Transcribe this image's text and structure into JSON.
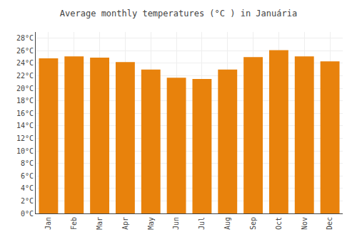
{
  "chart_data": {
    "type": "bar",
    "title": "Average monthly temperatures (°C ) in Januária",
    "categories": [
      "Jan",
      "Feb",
      "Mar",
      "Apr",
      "May",
      "Jun",
      "Jul",
      "Aug",
      "Sep",
      "Oct",
      "Nov",
      "Dec"
    ],
    "values": [
      24.8,
      25.1,
      24.9,
      24.2,
      23.0,
      21.7,
      21.5,
      23.0,
      25.0,
      26.1,
      25.1,
      24.3
    ],
    "color": "#E8820C",
    "ylim": [
      0,
      29
    ],
    "yticks": [
      {
        "value": 0,
        "label": "0°C"
      },
      {
        "value": 2,
        "label": "2°C"
      },
      {
        "value": 4,
        "label": "4°C"
      },
      {
        "value": 6,
        "label": "6°C"
      },
      {
        "value": 8,
        "label": "8°C"
      },
      {
        "value": 10,
        "label": "10°C"
      },
      {
        "value": 12,
        "label": "12°C"
      },
      {
        "value": 14,
        "label": "14°C"
      },
      {
        "value": 16,
        "label": "16°C"
      },
      {
        "value": 18,
        "label": "18°C"
      },
      {
        "value": 20,
        "label": "20°C"
      },
      {
        "value": 22,
        "label": "22°C"
      },
      {
        "value": 24,
        "label": "24°C"
      },
      {
        "value": 26,
        "label": "26°C"
      },
      {
        "value": 28,
        "label": "28°C"
      }
    ],
    "grid": true
  }
}
